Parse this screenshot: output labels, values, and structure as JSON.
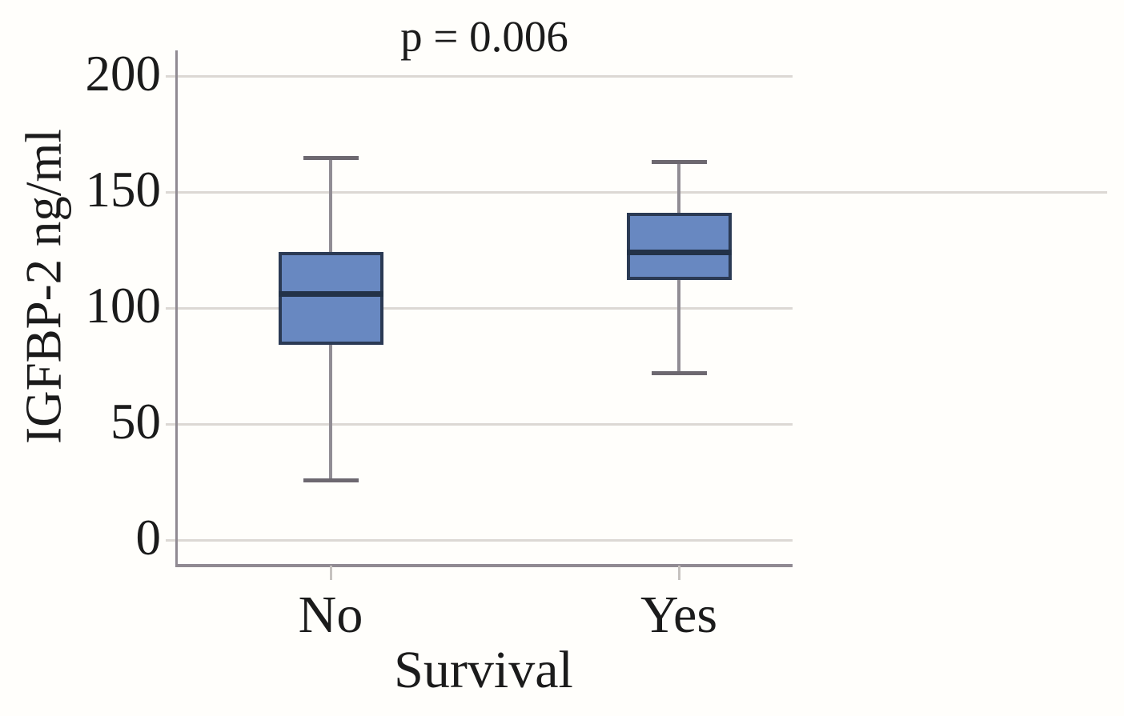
{
  "chart_data": {
    "type": "box",
    "title": "p = 0.006",
    "xlabel": "Survival",
    "ylabel": "IGFBP-2 ng/ml",
    "categories": [
      "No",
      "Yes"
    ],
    "yticks": [
      0,
      50,
      100,
      150,
      200
    ],
    "ylim": [
      0,
      200
    ],
    "grid": true,
    "legend": "none",
    "series": [
      {
        "name": "No",
        "whisker_low": 26,
        "q1": 84,
        "median": 106,
        "q3": 124,
        "whisker_high": 165
      },
      {
        "name": "Yes",
        "whisker_low": 72,
        "q1": 112,
        "median": 124,
        "q3": 141,
        "whisker_high": 163
      }
    ],
    "colors": {
      "box_fill": "#6888c1",
      "box_border": "#2b3a54",
      "median": "#233248",
      "whisker": "#918d94",
      "whisker_cap": "#6d6870",
      "gridline": "#dcd8d4",
      "axis": "#908a92",
      "x_tick": "#c6c2bf",
      "text": "#1b1b1b"
    }
  }
}
